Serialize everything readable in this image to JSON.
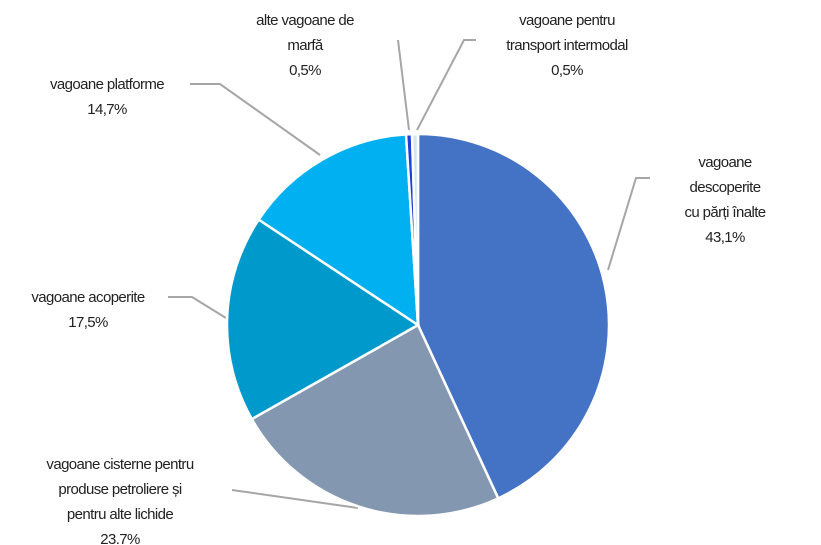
{
  "chart_data": {
    "type": "pie",
    "categories": [
      "vagoane descoperite\ncu părți înalte",
      "vagoane cisterne pentru\nproduse petroliere și\npentru alte lichide",
      "vagoane acoperite",
      "vagoane platforme",
      "alte vagoane de\nmarfă",
      "vagoane pentru\ntransport intermodal"
    ],
    "values": [
      43.1,
      23.7,
      17.5,
      14.7,
      0.5,
      0.5
    ],
    "value_labels": [
      "43,1%",
      "23.7%",
      "17,5%",
      "14,7%",
      "0,5%",
      "0,5%"
    ],
    "colors": [
      "#4472c4",
      "#8497b0",
      "#0099cc",
      "#00b0f0",
      "#1f3fd6",
      "#d9e4f0"
    ]
  }
}
